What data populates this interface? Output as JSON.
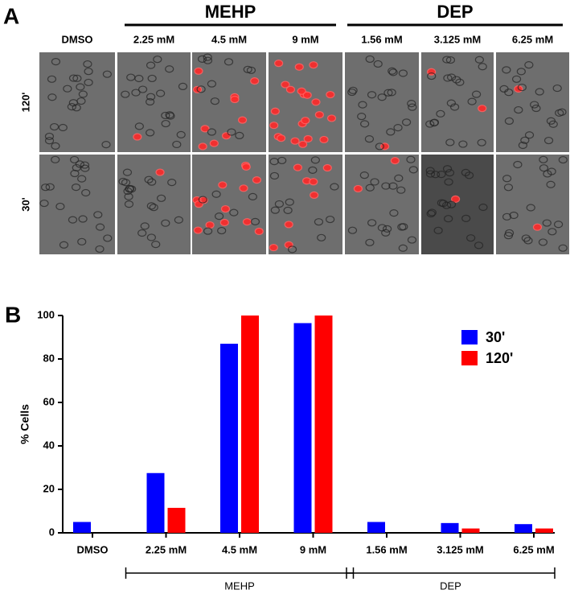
{
  "panel_a": {
    "label": "A",
    "groups": [
      "MEHP",
      "DEP"
    ],
    "columns": [
      "DMSO",
      "2.25 mM",
      "4.5 mM",
      "9 mM",
      "1.56 mM",
      "3.125 mM",
      "6.25 mM"
    ],
    "rows": [
      "120'",
      "30'"
    ]
  },
  "panel_b_label": "B",
  "chart_data": {
    "type": "bar",
    "ylabel": "% Cells",
    "categories": [
      "DMSO",
      "2.25 mM",
      "4.5 mM",
      "9 mM",
      "1.56 mM",
      "3.125 mM",
      "6.25 mM"
    ],
    "series": [
      {
        "name": "30'",
        "color": "#0000ff",
        "values": [
          5,
          27.5,
          87,
          96.5,
          5,
          4.5,
          4
        ]
      },
      {
        "name": "120'",
        "color": "#ff0000",
        "values": [
          0,
          11.5,
          100,
          100,
          0,
          2,
          2
        ]
      }
    ],
    "groups": [
      {
        "name": "MEHP",
        "start": 1,
        "end": 3
      },
      {
        "name": "DEP",
        "start": 4,
        "end": 6
      }
    ],
    "ylim": [
      0,
      100
    ],
    "yticks": [
      0,
      20,
      40,
      60,
      80,
      100
    ],
    "legend": "upper right",
    "grid": false
  }
}
